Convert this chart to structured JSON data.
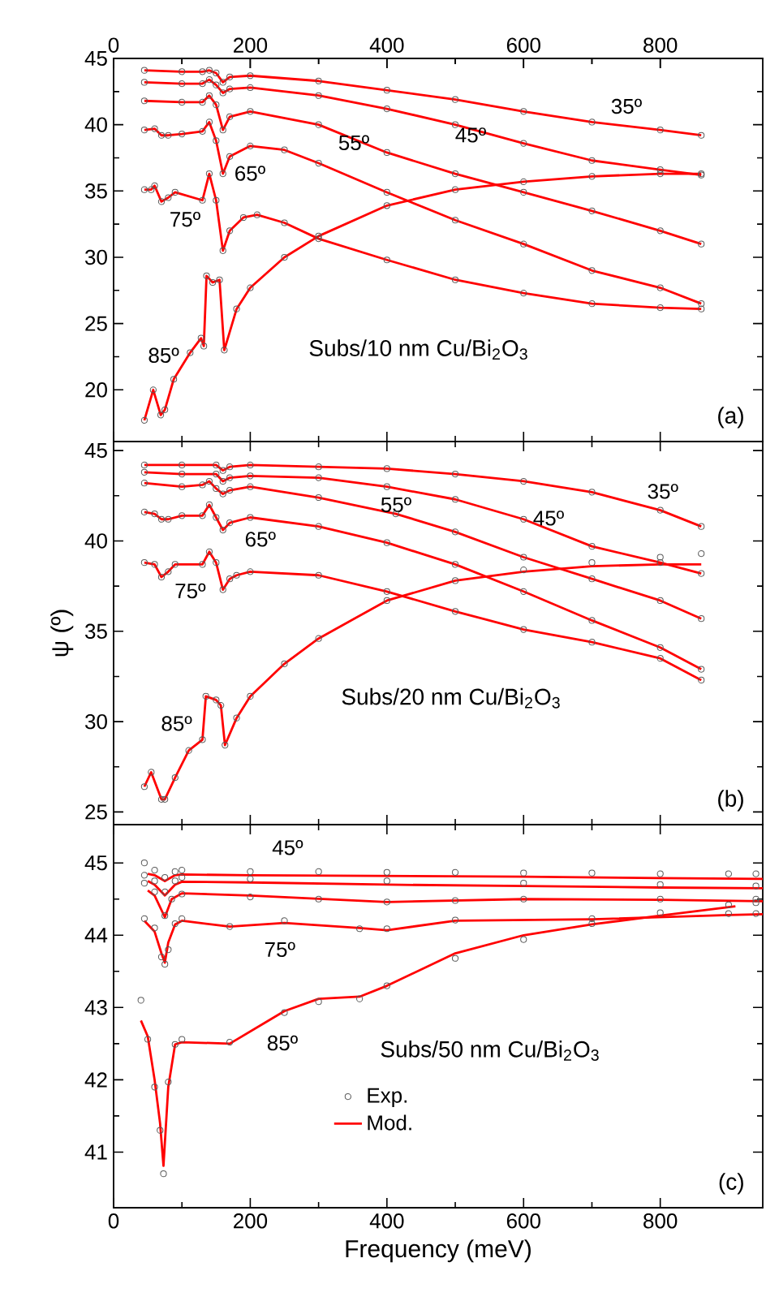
{
  "chart_data": [
    {
      "type": "line",
      "xlim": [
        0,
        950
      ],
      "xticks": [
        0,
        200,
        400,
        600,
        800
      ],
      "x2lim": [
        0,
        950
      ],
      "x2ticks": [
        0,
        200,
        400,
        600,
        800
      ],
      "ylim": [
        16.1,
        45
      ],
      "yticks": [
        20,
        25,
        30,
        35,
        40,
        45
      ],
      "tick_labels": "y",
      "annotations": [
        "Subs/10 nm Cu/Bi$_{2}$O$_{3}$",
        "(a)",
        "35º",
        "45º",
        "55º",
        "65º",
        "75º",
        "85º"
      ],
      "series": [
        {
          "type": "scatter",
          "marker": "circle",
          "color": "#5a5a5a",
          "x": [
            45,
            100,
            130,
            140,
            150,
            160,
            170,
            200,
            300,
            400,
            500,
            600,
            700,
            800,
            860
          ],
          "values": [
            44.1,
            44.0,
            44.0,
            44.1,
            43.9,
            43.2,
            43.6,
            43.7,
            43.3,
            42.6,
            41.9,
            41.0,
            40.2,
            39.6,
            39.2
          ]
        },
        {
          "type": "line",
          "color": "#ff0000",
          "x": [
            45,
            100,
            130,
            140,
            150,
            160,
            170,
            200,
            300,
            400,
            500,
            600,
            700,
            800,
            860
          ],
          "values": [
            44.1,
            44.0,
            44.0,
            44.1,
            43.9,
            43.2,
            43.6,
            43.7,
            43.3,
            42.6,
            41.9,
            41.0,
            40.2,
            39.6,
            39.2
          ]
        },
        {
          "type": "scatter",
          "marker": "circle",
          "color": "#5a5a5a",
          "x": [
            45,
            100,
            130,
            140,
            150,
            160,
            170,
            200,
            300,
            400,
            500,
            600,
            700,
            800,
            860
          ],
          "values": [
            43.2,
            43.1,
            43.1,
            43.4,
            43.0,
            42.4,
            42.7,
            42.8,
            42.2,
            41.2,
            40.0,
            38.6,
            37.3,
            36.6,
            36.2
          ]
        },
        {
          "type": "line",
          "color": "#ff0000",
          "x": [
            45,
            100,
            130,
            140,
            150,
            160,
            170,
            200,
            300,
            400,
            500,
            600,
            700,
            800,
            860
          ],
          "values": [
            43.2,
            43.1,
            43.1,
            43.4,
            43.0,
            42.4,
            42.7,
            42.8,
            42.2,
            41.2,
            40.0,
            38.6,
            37.3,
            36.6,
            36.2
          ]
        },
        {
          "type": "scatter",
          "marker": "circle",
          "color": "#5a5a5a",
          "x": [
            45,
            100,
            130,
            140,
            150,
            160,
            170,
            200,
            300,
            400,
            500,
            600,
            700,
            800,
            860
          ],
          "values": [
            41.8,
            41.7,
            41.7,
            42.2,
            41.5,
            39.6,
            40.6,
            41.0,
            40.0,
            37.9,
            36.3,
            34.9,
            33.5,
            32.0,
            31.0
          ]
        },
        {
          "type": "line",
          "color": "#ff0000",
          "x": [
            45,
            100,
            130,
            140,
            150,
            160,
            170,
            200,
            300,
            400,
            500,
            600,
            700,
            800,
            860
          ],
          "values": [
            41.8,
            41.7,
            41.7,
            42.2,
            41.5,
            39.6,
            40.6,
            41.0,
            40.0,
            37.9,
            36.3,
            34.9,
            33.5,
            32.0,
            31.0
          ]
        },
        {
          "type": "scatter",
          "marker": "circle",
          "color": "#5a5a5a",
          "x": [
            45,
            60,
            70,
            80,
            100,
            130,
            140,
            150,
            160,
            170,
            200,
            250,
            300,
            400,
            500,
            600,
            700,
            800,
            860
          ],
          "values": [
            39.6,
            39.7,
            39.2,
            39.2,
            39.3,
            39.5,
            40.2,
            38.8,
            36.3,
            37.6,
            38.4,
            38.1,
            37.1,
            34.9,
            32.8,
            31.0,
            29.0,
            27.7,
            26.5
          ]
        },
        {
          "type": "line",
          "color": "#ff0000",
          "x": [
            45,
            60,
            70,
            80,
            100,
            130,
            140,
            150,
            160,
            170,
            200,
            250,
            300,
            400,
            500,
            600,
            700,
            800,
            860
          ],
          "values": [
            39.6,
            39.7,
            39.2,
            39.2,
            39.3,
            39.5,
            40.2,
            38.8,
            36.3,
            37.6,
            38.4,
            38.1,
            37.1,
            34.9,
            32.8,
            31.0,
            29.0,
            27.7,
            26.5
          ]
        },
        {
          "type": "scatter",
          "marker": "circle",
          "color": "#5a5a5a",
          "x": [
            45,
            55,
            60,
            70,
            80,
            90,
            130,
            140,
            150,
            160,
            170,
            190,
            210,
            250,
            300,
            400,
            500,
            600,
            700,
            800,
            860
          ],
          "values": [
            35.1,
            35.1,
            35.4,
            34.2,
            34.5,
            34.9,
            34.3,
            36.3,
            34.3,
            30.5,
            32.0,
            33.0,
            33.2,
            32.6,
            31.4,
            29.8,
            28.3,
            27.3,
            26.5,
            26.2,
            26.1
          ]
        },
        {
          "type": "line",
          "color": "#ff0000",
          "x": [
            45,
            55,
            60,
            70,
            80,
            90,
            130,
            140,
            150,
            160,
            170,
            190,
            210,
            250,
            300,
            400,
            500,
            600,
            700,
            800,
            860
          ],
          "values": [
            35.1,
            35.1,
            35.4,
            34.2,
            34.5,
            34.9,
            34.3,
            36.3,
            34.3,
            30.5,
            32.0,
            33.0,
            33.2,
            32.6,
            31.4,
            29.8,
            28.3,
            27.3,
            26.5,
            26.2,
            26.1
          ]
        },
        {
          "type": "scatter",
          "marker": "circle",
          "color": "#5a5a5a",
          "x": [
            45,
            58,
            69,
            75,
            88,
            112,
            128,
            132,
            136,
            145,
            155,
            162,
            180,
            200,
            250,
            300,
            400,
            500,
            600,
            700,
            800,
            860
          ],
          "values": [
            17.7,
            20.0,
            18.1,
            18.5,
            20.8,
            22.8,
            23.9,
            23.3,
            28.6,
            28.1,
            28.3,
            23.0,
            26.1,
            27.7,
            30.0,
            31.6,
            33.9,
            35.1,
            35.7,
            36.1,
            36.3,
            36.3
          ]
        },
        {
          "type": "line",
          "color": "#ff0000",
          "x": [
            45,
            58,
            69,
            75,
            88,
            112,
            128,
            132,
            136,
            145,
            155,
            162,
            180,
            200,
            250,
            300,
            400,
            500,
            600,
            700,
            800,
            860
          ],
          "values": [
            17.7,
            20.0,
            18.1,
            18.5,
            20.8,
            22.8,
            23.9,
            23.3,
            28.6,
            28.1,
            28.3,
            23.0,
            26.1,
            27.7,
            30.0,
            31.6,
            33.9,
            35.1,
            35.7,
            36.1,
            36.3,
            36.3
          ]
        }
      ]
    },
    {
      "type": "line",
      "xlim": [
        0,
        950
      ],
      "xticks": [
        0,
        200,
        400,
        600,
        800
      ],
      "ylim": [
        24.3,
        45.5
      ],
      "yticks": [
        25,
        30,
        35,
        40,
        45
      ],
      "tick_labels": "y",
      "ylabel": "ψ (º)",
      "annotations": [
        "Subs/20 nm Cu/Bi$_{2}$O$_{3}$",
        "(b)",
        "35º",
        "45º",
        "55º",
        "65º",
        "75º",
        "85º"
      ],
      "series": [
        {
          "type": "scatter",
          "marker": "circle",
          "color": "#5a5a5a",
          "x": [
            45,
            100,
            150,
            160,
            170,
            200,
            300,
            400,
            500,
            600,
            700,
            800,
            860
          ],
          "values": [
            44.2,
            44.2,
            44.2,
            43.9,
            44.1,
            44.2,
            44.1,
            44.0,
            43.7,
            43.3,
            42.7,
            41.7,
            40.8
          ]
        },
        {
          "type": "line",
          "color": "#ff0000",
          "x": [
            45,
            100,
            150,
            160,
            170,
            200,
            300,
            400,
            500,
            600,
            700,
            800,
            860
          ],
          "values": [
            44.2,
            44.2,
            44.2,
            43.9,
            44.1,
            44.2,
            44.1,
            44.0,
            43.7,
            43.3,
            42.7,
            41.7,
            40.8
          ]
        },
        {
          "type": "scatter",
          "marker": "circle",
          "color": "#5a5a5a",
          "x": [
            45,
            100,
            150,
            160,
            170,
            200,
            300,
            400,
            500,
            600,
            700,
            800,
            860
          ],
          "values": [
            43.8,
            43.7,
            43.7,
            43.3,
            43.5,
            43.6,
            43.5,
            43.0,
            42.3,
            41.2,
            39.7,
            38.8,
            38.2
          ]
        },
        {
          "type": "line",
          "color": "#ff0000",
          "x": [
            45,
            100,
            150,
            160,
            170,
            200,
            300,
            400,
            500,
            600,
            700,
            800,
            860
          ],
          "values": [
            43.8,
            43.7,
            43.7,
            43.3,
            43.5,
            43.6,
            43.5,
            43.0,
            42.3,
            41.2,
            39.7,
            38.8,
            38.2
          ]
        },
        {
          "type": "scatter",
          "marker": "circle",
          "color": "#5a5a5a",
          "x": [
            45,
            100,
            130,
            140,
            150,
            160,
            170,
            200,
            300,
            413,
            500,
            600,
            700,
            800,
            860
          ],
          "values": [
            43.2,
            43.0,
            43.1,
            43.3,
            42.9,
            42.6,
            42.8,
            43.0,
            42.4,
            41.5,
            40.5,
            39.1,
            37.9,
            36.7,
            35.7
          ]
        },
        {
          "type": "line",
          "color": "#ff0000",
          "x": [
            45,
            100,
            130,
            140,
            150,
            160,
            170,
            200,
            300,
            413,
            500,
            600,
            700,
            800,
            860
          ],
          "values": [
            43.2,
            43.0,
            43.1,
            43.3,
            42.9,
            42.6,
            42.8,
            43.0,
            42.4,
            41.5,
            40.5,
            39.1,
            37.9,
            36.7,
            35.7
          ]
        },
        {
          "type": "scatter",
          "marker": "circle",
          "color": "#5a5a5a",
          "x": [
            45,
            60,
            70,
            80,
            100,
            130,
            140,
            150,
            160,
            170,
            200,
            300,
            400,
            500,
            600,
            700,
            800,
            860
          ],
          "values": [
            41.6,
            41.5,
            41.2,
            41.2,
            41.4,
            41.4,
            42.0,
            41.3,
            40.6,
            41.0,
            41.3,
            40.8,
            39.9,
            38.7,
            37.2,
            35.6,
            34.1,
            32.9
          ]
        },
        {
          "type": "line",
          "color": "#ff0000",
          "x": [
            45,
            60,
            70,
            80,
            100,
            130,
            140,
            150,
            160,
            170,
            200,
            300,
            400,
            500,
            600,
            700,
            800,
            860
          ],
          "values": [
            41.6,
            41.5,
            41.2,
            41.2,
            41.4,
            41.4,
            42.0,
            41.3,
            40.6,
            41.0,
            41.3,
            40.8,
            39.9,
            38.7,
            37.2,
            35.6,
            34.1,
            32.9
          ]
        },
        {
          "type": "scatter",
          "marker": "circle",
          "color": "#5a5a5a",
          "x": [
            45,
            60,
            70,
            80,
            90,
            130,
            140,
            150,
            160,
            170,
            180,
            200,
            300,
            400,
            500,
            600,
            700,
            800,
            860
          ],
          "values": [
            38.8,
            38.7,
            38.0,
            38.3,
            38.7,
            38.7,
            39.4,
            38.8,
            37.3,
            37.9,
            38.1,
            38.3,
            38.1,
            37.2,
            36.1,
            35.1,
            34.4,
            33.5,
            32.3
          ]
        },
        {
          "type": "line",
          "color": "#ff0000",
          "x": [
            45,
            60,
            70,
            80,
            90,
            130,
            140,
            150,
            160,
            170,
            180,
            200,
            300,
            400,
            500,
            600,
            700,
            800,
            860
          ],
          "values": [
            38.8,
            38.7,
            38.0,
            38.3,
            38.7,
            38.7,
            39.4,
            38.8,
            37.3,
            37.9,
            38.1,
            38.3,
            38.1,
            37.2,
            36.1,
            35.1,
            34.4,
            33.5,
            32.3
          ]
        },
        {
          "type": "scatter",
          "marker": "circle",
          "color": "#5a5a5a",
          "x": [
            45,
            55,
            70,
            75,
            90,
            110,
            130,
            135,
            150,
            157,
            163,
            180,
            200,
            250,
            300,
            400,
            500,
            600,
            700,
            800,
            860
          ],
          "values": [
            26.4,
            27.2,
            25.7,
            25.7,
            26.9,
            28.4,
            29.0,
            31.4,
            31.2,
            30.9,
            28.7,
            30.2,
            31.4,
            33.2,
            34.6,
            36.7,
            37.8,
            38.4,
            38.8,
            39.1,
            39.3
          ]
        },
        {
          "type": "line",
          "color": "#ff0000",
          "x": [
            45,
            55,
            70,
            75,
            90,
            110,
            130,
            135,
            150,
            157,
            163,
            180,
            200,
            250,
            300,
            400,
            500,
            600,
            700,
            800,
            860
          ],
          "values": [
            26.4,
            27.2,
            25.7,
            25.7,
            26.9,
            28.4,
            29.0,
            31.4,
            31.2,
            30.9,
            28.7,
            30.2,
            31.4,
            33.2,
            34.6,
            36.7,
            37.8,
            38.3,
            38.6,
            38.7,
            38.7
          ]
        }
      ]
    },
    {
      "type": "line",
      "xlim": [
        0,
        950
      ],
      "xticks": [
        0,
        200,
        400,
        600,
        800
      ],
      "ylim": [
        40.23,
        45.53
      ],
      "yticks": [
        41,
        42,
        43,
        44,
        45
      ],
      "xlabel": "Frequency (meV)",
      "legend": "bottom",
      "annotations": [
        "Subs/50 nm Cu/Bi$_{2}$O$_{3}$",
        "(c)",
        "45º",
        "75º",
        "85º"
      ],
      "series": [
        {
          "type": "scatter",
          "marker": "circle",
          "color": "#5a5a5a",
          "name": "Exp.",
          "x": [
            45,
            60,
            75,
            90,
            100,
            200,
            300,
            400,
            500,
            600,
            700,
            800,
            900,
            940
          ],
          "values": [
            45.0,
            44.9,
            44.8,
            44.88,
            44.9,
            44.88,
            44.88,
            44.87,
            44.87,
            44.86,
            44.86,
            44.85,
            44.85,
            44.85
          ]
        },
        {
          "type": "line",
          "color": "#ff0000",
          "name": "Mod.",
          "x": [
            50,
            60,
            75,
            90,
            100,
            200,
            400,
            600,
            800,
            950
          ],
          "values": [
            44.85,
            44.83,
            44.75,
            44.83,
            44.84,
            44.83,
            44.82,
            44.81,
            44.79,
            44.78
          ]
        },
        {
          "type": "scatter",
          "marker": "circle",
          "color": "#5a5a5a",
          "x": [
            45,
            60,
            75,
            90,
            100,
            200,
            400,
            600,
            800,
            940
          ],
          "values": [
            44.83,
            44.75,
            44.6,
            44.75,
            44.8,
            44.78,
            44.75,
            44.72,
            44.7,
            44.68
          ]
        },
        {
          "type": "line",
          "color": "#ff0000",
          "x": [
            50,
            60,
            75,
            90,
            100,
            200,
            400,
            600,
            800,
            950
          ],
          "values": [
            44.75,
            44.7,
            44.55,
            44.7,
            44.74,
            44.73,
            44.7,
            44.68,
            44.66,
            44.65
          ]
        },
        {
          "type": "scatter",
          "marker": "circle",
          "color": "#5a5a5a",
          "x": [
            45,
            60,
            75,
            85,
            100,
            200,
            300,
            400,
            500,
            600,
            800,
            940
          ],
          "values": [
            44.72,
            44.6,
            44.27,
            44.5,
            44.57,
            44.53,
            44.5,
            44.46,
            44.48,
            44.5,
            44.5,
            44.5
          ]
        },
        {
          "type": "line",
          "color": "#ff0000",
          "x": [
            50,
            60,
            75,
            85,
            100,
            200,
            400,
            600,
            800,
            950
          ],
          "values": [
            44.62,
            44.55,
            44.25,
            44.5,
            44.58,
            44.55,
            44.46,
            44.5,
            44.49,
            44.47
          ]
        },
        {
          "type": "scatter",
          "marker": "circle",
          "color": "#5a5a5a",
          "x": [
            45,
            60,
            70,
            75,
            80,
            90,
            100,
            170,
            250,
            360,
            400,
            500,
            700,
            900,
            940
          ],
          "values": [
            44.23,
            44.1,
            43.7,
            43.6,
            43.8,
            44.16,
            44.23,
            44.12,
            44.2,
            44.09,
            44.09,
            44.21,
            44.23,
            44.3,
            44.3
          ]
        },
        {
          "type": "line",
          "color": "#ff0000",
          "x": [
            45,
            60,
            70,
            75,
            80,
            90,
            100,
            170,
            250,
            360,
            400,
            500,
            700,
            900,
            950
          ],
          "values": [
            44.2,
            44.05,
            43.75,
            43.62,
            43.9,
            44.15,
            44.2,
            44.12,
            44.17,
            44.1,
            44.07,
            44.2,
            44.22,
            44.28,
            44.29
          ]
        },
        {
          "type": "scatter",
          "marker": "circle",
          "color": "#5a5a5a",
          "x": [
            40,
            50,
            60,
            68,
            73,
            80,
            90,
            100,
            170,
            250,
            300,
            360,
            400,
            500,
            600,
            700,
            800,
            900,
            940
          ],
          "values": [
            43.1,
            42.56,
            41.9,
            41.3,
            40.7,
            41.97,
            42.49,
            42.56,
            42.52,
            42.93,
            43.08,
            43.12,
            43.3,
            43.68,
            43.94,
            44.16,
            44.31,
            44.42,
            44.45
          ]
        },
        {
          "type": "line",
          "color": "#ff0000",
          "x": [
            40,
            50,
            60,
            68,
            73,
            80,
            90,
            100,
            170,
            250,
            300,
            360,
            400,
            500,
            600,
            700,
            800,
            910
          ],
          "values": [
            42.82,
            42.6,
            42.0,
            41.4,
            40.81,
            41.9,
            42.49,
            42.52,
            42.5,
            42.95,
            43.12,
            43.15,
            43.3,
            43.75,
            44.0,
            44.15,
            44.27,
            44.4
          ]
        }
      ]
    }
  ]
}
